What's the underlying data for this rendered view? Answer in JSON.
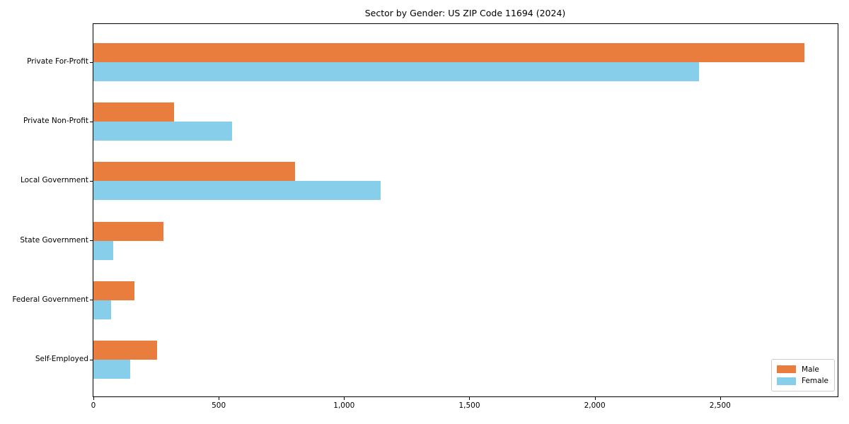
{
  "chart_data": {
    "type": "bar",
    "orientation": "horizontal",
    "title": "Sector by Gender: US ZIP Code 11694 (2024)",
    "xlabel": "",
    "ylabel": "",
    "categories": [
      "Private For-Profit",
      "Private Non-Profit",
      "Local Government",
      "State Government",
      "Federal Government",
      "Self-Employed"
    ],
    "series": [
      {
        "name": "Male",
        "color": "#e87d3d",
        "values": [
          2835,
          321,
          805,
          278,
          164,
          254
        ]
      },
      {
        "name": "Female",
        "color": "#87ceeb",
        "values": [
          2416,
          552,
          1147,
          78,
          71,
          146
        ]
      }
    ],
    "xlim": [
      0,
      2969
    ],
    "x_tick_values": [
      0,
      500,
      1000,
      1500,
      2000,
      2500
    ],
    "x_tick_labels": [
      "0",
      "500",
      "1,000",
      "1,500",
      "2,000",
      "2,500"
    ],
    "grid": false,
    "legend_position": "lower right"
  },
  "colors": {
    "background": "#ffffff",
    "axis": "#000000",
    "text": "#000000",
    "legend_border": "#cccccc"
  }
}
